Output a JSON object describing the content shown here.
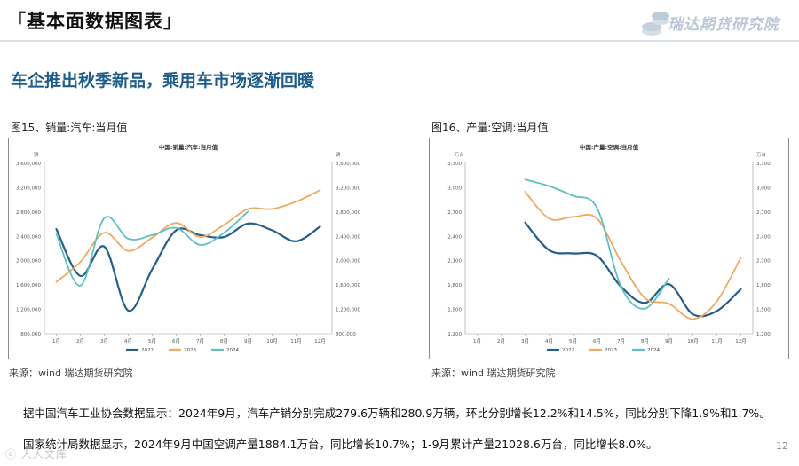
{
  "header": {
    "title": "「基本面数据图表」",
    "logo_text": "瑞达期货研究院"
  },
  "headline": "车企推出秋季新品，乘用车市场逐渐回暖",
  "charts": [
    {
      "caption": "图15、销量:汽车:当月值",
      "source": "来源：wind   瑞达期货研究院"
    },
    {
      "caption": "图16、产量:空调:当月值",
      "source": "来源：wind   瑞达期货研究院"
    }
  ],
  "summary": {
    "line1": "据中国汽车工业协会数据显示：2024年9月，汽车产销分别完成279.6万辆和280.9万辆，环比分别增长12.2%和14.5%，同比分别下降1.9%和1.7%。",
    "line2": "国家统计局数据显示，2024年9月中国空调产量1884.1万台，同比增长10.7%；1-9月累计产量21028.6万台，同比增长8.0%。"
  },
  "page_number": "12",
  "watermark": "ⓒ 人人文库",
  "colors": {
    "series_2022": "#245e8a",
    "series_2023": "#f0a860",
    "series_2024": "#5ebfc4",
    "headline": "#1f5e8a"
  },
  "chart_data": [
    {
      "type": "line",
      "title": "中国:销量:汽车:当月值",
      "unit_left": "辆",
      "unit_right": "辆",
      "categories": [
        "1月",
        "2月",
        "3月",
        "4月",
        "5月",
        "6月",
        "7月",
        "8月",
        "9月",
        "10月",
        "11月",
        "12月"
      ],
      "ylim": [
        800000,
        3600000
      ],
      "yticks": [
        800000,
        1200000,
        1600000,
        2000000,
        2400000,
        2800000,
        3200000,
        3600000
      ],
      "ytick_labels": [
        "800,000",
        "1,200,000",
        "1,600,000",
        "2,000,000",
        "2,400,000",
        "2,800,000",
        "3,200,000",
        "3,600,000"
      ],
      "legend": [
        "2022",
        "2023",
        "2024"
      ],
      "series": [
        {
          "name": "2022",
          "values": [
            2520000,
            1750000,
            2230000,
            1180000,
            1860000,
            2500000,
            2420000,
            2390000,
            2610000,
            2500000,
            2320000,
            2560000
          ]
        },
        {
          "name": "2023",
          "values": [
            1650000,
            1980000,
            2460000,
            2160000,
            2380000,
            2620000,
            2390000,
            2590000,
            2850000,
            2850000,
            2970000,
            3160000
          ]
        },
        {
          "name": "2024",
          "values": [
            2440000,
            1590000,
            2700000,
            2360000,
            2420000,
            2540000,
            2260000,
            2460000,
            2810000,
            null,
            null,
            null
          ]
        }
      ]
    },
    {
      "type": "line",
      "title": "中国:产量:空调:当月值",
      "unit_left": "万台",
      "unit_right": "万台",
      "categories": [
        "1月",
        "2月",
        "3月",
        "4月",
        "5月",
        "6月",
        "7月",
        "8月",
        "9月",
        "10月",
        "11月",
        "12月"
      ],
      "ylim": [
        1200,
        3300
      ],
      "yticks": [
        1200,
        1500,
        1800,
        2100,
        2400,
        2700,
        3000,
        3300
      ],
      "ytick_labels": [
        "1,200",
        "1,500",
        "1,800",
        "2,100",
        "2,400",
        "2,700",
        "3,000",
        "3,300"
      ],
      "legend": [
        "2022",
        "2023",
        "2024"
      ],
      "series": [
        {
          "name": "2022",
          "values": [
            null,
            null,
            2570,
            2230,
            2190,
            2160,
            1780,
            1580,
            1810,
            1440,
            1480,
            1750
          ]
        },
        {
          "name": "2023",
          "values": [
            null,
            null,
            2950,
            2620,
            2640,
            2620,
            2090,
            1640,
            1570,
            1380,
            1600,
            2140
          ]
        },
        {
          "name": "2024",
          "values": [
            null,
            null,
            3100,
            3020,
            2900,
            2750,
            1780,
            1510,
            1880,
            null,
            null,
            null
          ]
        }
      ]
    }
  ]
}
